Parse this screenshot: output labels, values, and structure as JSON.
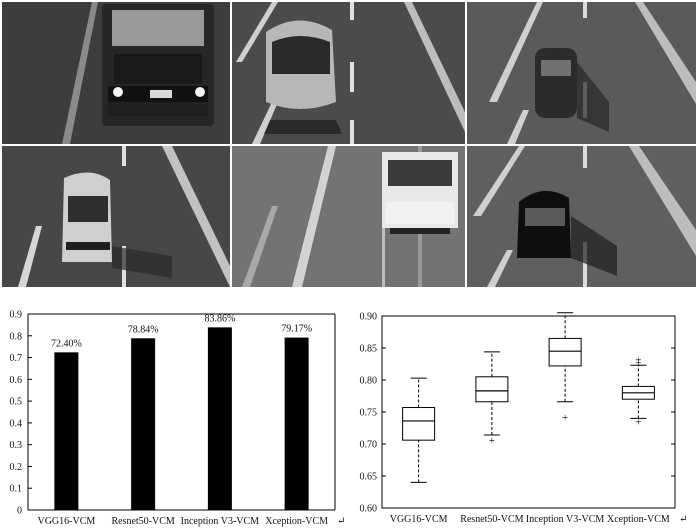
{
  "photos": [
    {
      "subject": "truck-front"
    },
    {
      "subject": "bus-front"
    },
    {
      "subject": "car-top"
    },
    {
      "subject": "van-front"
    },
    {
      "subject": "light-truck-front"
    },
    {
      "subject": "black-sedan"
    }
  ],
  "chart_data": [
    {
      "type": "bar",
      "categories": [
        "VGG16-VCM",
        "Resnet50-VCM",
        "Inception V3-VCM",
        "Xception-VCM"
      ],
      "values": [
        0.724,
        0.7884,
        0.8386,
        0.7917
      ],
      "data_labels": [
        "72.40%",
        "78.84%",
        "83.86%",
        "79.17%"
      ],
      "ylim": [
        0,
        0.9
      ],
      "yticks": [
        "0",
        "0.1",
        "0.2",
        "0.3",
        "0.4",
        "0.5",
        "0.6",
        "0.7",
        "0.8",
        "0.9"
      ],
      "ytick_values": [
        0,
        0.1,
        0.2,
        0.3,
        0.4,
        0.5,
        0.6,
        0.7,
        0.8,
        0.9
      ],
      "bar_color": "#000000",
      "trailing_mark": "↵"
    },
    {
      "type": "box",
      "categories": [
        "VGG16-VCM",
        "Resnet50-VCM",
        "Inception V3-VCM",
        "Xception-VCM"
      ],
      "boxes": [
        {
          "whisker_low": 0.64,
          "q1": 0.706,
          "median": 0.736,
          "q3": 0.757,
          "whisker_high": 0.803,
          "outliers": []
        },
        {
          "whisker_low": 0.714,
          "q1": 0.766,
          "median": 0.783,
          "q3": 0.805,
          "whisker_high": 0.844,
          "outliers": [
            0.706
          ]
        },
        {
          "whisker_low": 0.766,
          "q1": 0.822,
          "median": 0.845,
          "q3": 0.865,
          "whisker_high": 0.905,
          "outliers": [
            0.742
          ]
        },
        {
          "whisker_low": 0.74,
          "q1": 0.77,
          "median": 0.78,
          "q3": 0.79,
          "whisker_high": 0.823,
          "outliers": [
            0.735,
            0.827,
            0.832
          ]
        }
      ],
      "ylim": [
        0.6,
        0.9
      ],
      "yticks": [
        "0.60",
        "0.65",
        "0.70",
        "0.75",
        "0.80",
        "0.85",
        "0.90"
      ],
      "ytick_values": [
        0.6,
        0.65,
        0.7,
        0.75,
        0.8,
        0.85,
        0.9
      ],
      "trailing_mark": "↵"
    }
  ]
}
